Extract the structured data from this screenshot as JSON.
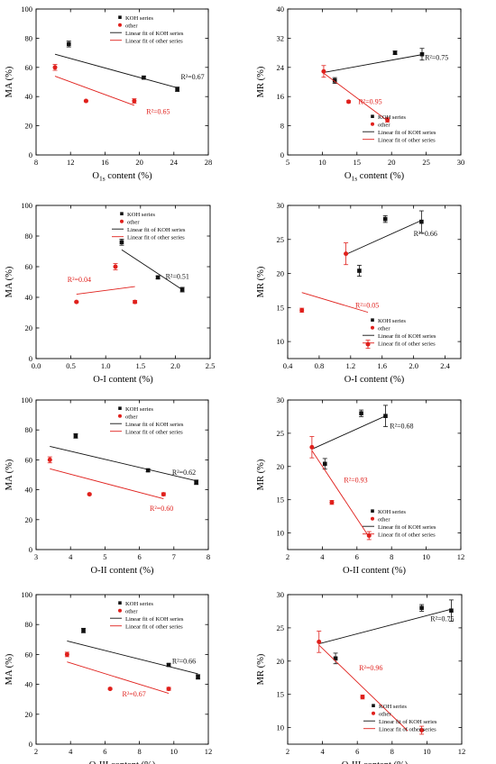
{
  "colors": {
    "koh": "#111111",
    "other": "#e0201c",
    "axis": "#000000"
  },
  "chart_data": [
    {
      "type": "scatter",
      "xlabel": "O",
      "xlabel_sub": "1s",
      "xlabel_tail": " content (%)",
      "ylabel": "MA (%)",
      "xlim": [
        8,
        28
      ],
      "ylim": [
        0,
        100
      ],
      "xticks": [
        8,
        12,
        16,
        20,
        24,
        28
      ],
      "yticks": [
        0,
        20,
        40,
        60,
        80,
        100
      ],
      "legend": {
        "placement": "top-right",
        "entries": [
          "KOH series",
          "other",
          "Linear fit of KOH series",
          "Linear fit of other series"
        ]
      },
      "series": [
        {
          "name": "KOH series",
          "marker": "square",
          "color": "#111111",
          "points": [
            {
              "x": 11.8,
              "y": 76,
              "err": 2
            },
            {
              "x": 20.5,
              "y": 53,
              "err": 1
            },
            {
              "x": 24.4,
              "y": 45,
              "err": 1.5
            }
          ],
          "fit": {
            "x": [
              10.2,
              24.4
            ],
            "y": [
              69,
              46
            ]
          },
          "r2": "R²=0.67",
          "r2_at": {
            "x": 24.8,
            "y": 52
          }
        },
        {
          "name": "other",
          "marker": "circle",
          "color": "#e0201c",
          "points": [
            {
              "x": 10.2,
              "y": 60,
              "err": 2
            },
            {
              "x": 13.8,
              "y": 37,
              "err": 0.5
            },
            {
              "x": 19.4,
              "y": 37,
              "err": 1.5
            }
          ],
          "fit": {
            "x": [
              10.2,
              19.4
            ],
            "y": [
              54,
              34
            ]
          },
          "r2": "R²=0.65",
          "r2_at": {
            "x": 20.8,
            "y": 28
          }
        }
      ]
    },
    {
      "type": "scatter",
      "xlabel": "O",
      "xlabel_sub": "1s",
      "xlabel_tail": " content (%)",
      "ylabel": "MR (%)",
      "xlim": [
        5,
        30
      ],
      "ylim": [
        0,
        40
      ],
      "xticks": [
        5,
        10,
        15,
        20,
        25,
        30
      ],
      "yticks": [
        0,
        8,
        16,
        24,
        32,
        40
      ],
      "legend": {
        "placement": "bottom-right",
        "entries": [
          "KOH series",
          "other",
          "Linear fit of KOH series",
          "Linear fit of other series"
        ]
      },
      "series": [
        {
          "name": "KOH series",
          "marker": "square",
          "color": "#111111",
          "points": [
            {
              "x": 11.8,
              "y": 20.4,
              "err": 0.8
            },
            {
              "x": 20.5,
              "y": 28,
              "err": 0.5
            },
            {
              "x": 24.4,
              "y": 27.6,
              "err": 1.6
            }
          ],
          "fit": {
            "x": [
              10.2,
              24.4
            ],
            "y": [
              22.6,
              27.5
            ]
          },
          "r2": "R²=0.75",
          "r2_at": {
            "x": 24.8,
            "y": 26
          }
        },
        {
          "name": "other",
          "marker": "circle",
          "color": "#e0201c",
          "points": [
            {
              "x": 10.2,
              "y": 22.9,
              "err": 1.6
            },
            {
              "x": 13.8,
              "y": 14.6,
              "err": 0.3
            },
            {
              "x": 19.4,
              "y": 9.6,
              "err": 0.6
            }
          ],
          "fit": {
            "x": [
              10.2,
              19.4
            ],
            "y": [
              22.4,
              9.4
            ]
          },
          "r2": "R²=0.95",
          "r2_at": {
            "x": 15.2,
            "y": 14
          }
        }
      ]
    },
    {
      "type": "scatter",
      "xlabel": "O-I content (%)",
      "ylabel": "MA (%)",
      "xlim": [
        0,
        2.5
      ],
      "ylim": [
        0,
        100
      ],
      "xticks": [
        0.0,
        0.5,
        1.0,
        1.5,
        2.0,
        2.5
      ],
      "yticks": [
        0,
        20,
        40,
        60,
        80,
        100
      ],
      "legend": {
        "placement": "top-right",
        "entries": [
          "KOH series",
          "other",
          "Linear fit of KOH series",
          "Linear fit of other series"
        ]
      },
      "series": [
        {
          "name": "KOH series",
          "marker": "square",
          "color": "#111111",
          "points": [
            {
              "x": 1.23,
              "y": 76,
              "err": 2
            },
            {
              "x": 1.75,
              "y": 53,
              "err": 1
            },
            {
              "x": 2.1,
              "y": 45,
              "err": 1.5
            }
          ],
          "fit": {
            "x": [
              1.23,
              2.1
            ],
            "y": [
              71,
              45
            ]
          },
          "r2": "R²=0.51",
          "r2_at": {
            "x": 1.86,
            "y": 52
          }
        },
        {
          "name": "other",
          "marker": "circle",
          "color": "#e0201c",
          "points": [
            {
              "x": 0.58,
              "y": 37,
              "err": 0.5
            },
            {
              "x": 1.14,
              "y": 60,
              "err": 2
            },
            {
              "x": 1.42,
              "y": 37,
              "err": 1
            }
          ],
          "fit": {
            "x": [
              0.58,
              1.42
            ],
            "y": [
              42,
              47
            ]
          },
          "r2": "R²=0.04",
          "r2_at": {
            "x": 0.45,
            "y": 50
          }
        }
      ]
    },
    {
      "type": "scatter",
      "xlabel": "O-I content (%)",
      "ylabel": "MR (%)",
      "xlim": [
        0.4,
        2.6
      ],
      "ylim": [
        7.5,
        30
      ],
      "xticks": [
        0.4,
        0.8,
        1.2,
        1.6,
        2.0,
        2.4
      ],
      "yticks": [
        10,
        15,
        20,
        25,
        30
      ],
      "legend": {
        "placement": "bottom-right",
        "entries": [
          "KOH series",
          "other",
          "Linear fit of KOH series",
          "Linear fit of other series"
        ]
      },
      "series": [
        {
          "name": "KOH series",
          "marker": "square",
          "color": "#111111",
          "points": [
            {
              "x": 1.31,
              "y": 20.4,
              "err": 0.8
            },
            {
              "x": 1.64,
              "y": 28,
              "err": 0.5
            },
            {
              "x": 2.1,
              "y": 27.6,
              "err": 1.6
            }
          ],
          "fit": {
            "x": [
              1.14,
              2.1
            ],
            "y": [
              22.8,
              27.8
            ]
          },
          "r2": "R²=0.66",
          "r2_at": {
            "x": 2.0,
            "y": 25.5
          }
        },
        {
          "name": "other",
          "marker": "circle",
          "color": "#e0201c",
          "points": [
            {
              "x": 0.58,
              "y": 14.6,
              "err": 0.3
            },
            {
              "x": 1.14,
              "y": 22.9,
              "err": 1.6
            },
            {
              "x": 1.42,
              "y": 9.6,
              "err": 0.6
            }
          ],
          "fit": {
            "x": [
              0.58,
              1.42
            ],
            "y": [
              17.2,
              14.3
            ]
          },
          "r2": "R²=0.05",
          "r2_at": {
            "x": 1.26,
            "y": 15
          }
        }
      ]
    },
    {
      "type": "scatter",
      "xlabel": "O-II content (%)",
      "ylabel": "MA (%)",
      "xlim": [
        3,
        8
      ],
      "ylim": [
        0,
        100
      ],
      "xticks": [
        3,
        4,
        5,
        6,
        7,
        8
      ],
      "yticks": [
        0,
        20,
        40,
        60,
        80,
        100
      ],
      "legend": {
        "placement": "top-right",
        "entries": [
          "KOH series",
          "other",
          "Linear fit of KOH series",
          "Linear fit of other series"
        ]
      },
      "series": [
        {
          "name": "KOH series",
          "marker": "square",
          "color": "#111111",
          "points": [
            {
              "x": 4.15,
              "y": 76,
              "err": 1.5
            },
            {
              "x": 6.25,
              "y": 53,
              "err": 1
            },
            {
              "x": 7.65,
              "y": 45,
              "err": 1.5
            }
          ],
          "fit": {
            "x": [
              3.4,
              7.65
            ],
            "y": [
              69,
              46
            ]
          },
          "r2": "R²=0.62",
          "r2_at": {
            "x": 6.95,
            "y": 50
          }
        },
        {
          "name": "other",
          "marker": "circle",
          "color": "#e0201c",
          "points": [
            {
              "x": 3.4,
              "y": 60,
              "err": 2
            },
            {
              "x": 4.55,
              "y": 37,
              "err": 0.5
            },
            {
              "x": 6.7,
              "y": 37,
              "err": 1
            }
          ],
          "fit": {
            "x": [
              3.4,
              6.7
            ],
            "y": [
              54,
              34
            ]
          },
          "r2": "R²=0.60",
          "r2_at": {
            "x": 6.3,
            "y": 26
          }
        }
      ]
    },
    {
      "type": "scatter",
      "xlabel": "O-II content (%)",
      "ylabel": "MR (%)",
      "xlim": [
        2,
        12
      ],
      "ylim": [
        7.5,
        30
      ],
      "xticks": [
        2,
        4,
        6,
        8,
        10,
        12
      ],
      "yticks": [
        10,
        15,
        20,
        25,
        30
      ],
      "legend": {
        "placement": "bottom-right",
        "entries": [
          "KOH series",
          "other",
          "Linear fit of KOH series",
          "Linear fit of other series"
        ]
      },
      "series": [
        {
          "name": "KOH series",
          "marker": "square",
          "color": "#111111",
          "points": [
            {
              "x": 4.15,
              "y": 20.4,
              "err": 0.8
            },
            {
              "x": 6.25,
              "y": 28,
              "err": 0.5
            },
            {
              "x": 7.65,
              "y": 27.6,
              "err": 1.6
            }
          ],
          "fit": {
            "x": [
              3.4,
              7.65
            ],
            "y": [
              22.6,
              27.6
            ]
          },
          "r2": "R²=0.68",
          "r2_at": {
            "x": 7.9,
            "y": 25.7
          }
        },
        {
          "name": "other",
          "marker": "circle",
          "color": "#e0201c",
          "points": [
            {
              "x": 3.4,
              "y": 22.9,
              "err": 1.6
            },
            {
              "x": 4.55,
              "y": 14.6,
              "err": 0.3
            },
            {
              "x": 6.7,
              "y": 9.6,
              "err": 0.6
            }
          ],
          "fit": {
            "x": [
              3.4,
              6.7
            ],
            "y": [
              22.4,
              9.4
            ]
          },
          "r2": "R²=0.93",
          "r2_at": {
            "x": 5.25,
            "y": 17.6
          }
        }
      ]
    },
    {
      "type": "scatter",
      "xlabel": "O-III content (%)",
      "ylabel": "MA (%)",
      "xlim": [
        2,
        12
      ],
      "ylim": [
        0,
        100
      ],
      "xticks": [
        2,
        4,
        6,
        8,
        10,
        12
      ],
      "yticks": [
        0,
        20,
        40,
        60,
        80,
        100
      ],
      "legend": {
        "placement": "top-right",
        "entries": [
          "KOH series",
          "other",
          "Linear fit of KOH series",
          "Linear fit of other series"
        ]
      },
      "series": [
        {
          "name": "KOH series",
          "marker": "square",
          "color": "#111111",
          "points": [
            {
              "x": 4.75,
              "y": 76,
              "err": 1.5
            },
            {
              "x": 9.7,
              "y": 53,
              "err": 1
            },
            {
              "x": 11.4,
              "y": 45,
              "err": 1.5
            }
          ],
          "fit": {
            "x": [
              3.8,
              11.4
            ],
            "y": [
              69,
              47
            ]
          },
          "r2": "R²=0.66",
          "r2_at": {
            "x": 9.9,
            "y": 54
          }
        },
        {
          "name": "other",
          "marker": "circle",
          "color": "#e0201c",
          "points": [
            {
              "x": 3.8,
              "y": 60,
              "err": 1.5
            },
            {
              "x": 6.3,
              "y": 37,
              "err": 0.5
            },
            {
              "x": 9.7,
              "y": 37,
              "err": 1
            }
          ],
          "fit": {
            "x": [
              3.8,
              9.7
            ],
            "y": [
              55,
              34
            ]
          },
          "r2": "R²=0.67",
          "r2_at": {
            "x": 7.0,
            "y": 32
          }
        }
      ]
    },
    {
      "type": "scatter",
      "xlabel": "O-III content (%)",
      "ylabel": "MR (%)",
      "xlim": [
        2,
        12
      ],
      "ylim": [
        7.5,
        30
      ],
      "xticks": [
        2,
        4,
        6,
        8,
        10,
        12
      ],
      "yticks": [
        10,
        15,
        20,
        25,
        30
      ],
      "legend": {
        "placement": "bottom-right",
        "entries": [
          "KOH series",
          "other",
          "Linear fit of KOH series",
          "Linear fit of other series"
        ]
      },
      "series": [
        {
          "name": "KOH series",
          "marker": "square",
          "color": "#111111",
          "points": [
            {
              "x": 4.75,
              "y": 20.4,
              "err": 0.8
            },
            {
              "x": 9.7,
              "y": 28,
              "err": 0.5
            },
            {
              "x": 11.4,
              "y": 27.6,
              "err": 1.6
            }
          ],
          "fit": {
            "x": [
              3.8,
              11.4
            ],
            "y": [
              22.6,
              27.8
            ]
          },
          "r2": "R²=0.75",
          "r2_at": {
            "x": 10.2,
            "y": 26
          }
        },
        {
          "name": "other",
          "marker": "circle",
          "color": "#e0201c",
          "points": [
            {
              "x": 3.8,
              "y": 22.9,
              "err": 1.6
            },
            {
              "x": 6.3,
              "y": 14.6,
              "err": 0.3
            },
            {
              "x": 9.7,
              "y": 9.6,
              "err": 0.6
            }
          ],
          "fit": {
            "x": [
              3.8,
              8.9
            ],
            "y": [
              22.4,
              9.5
            ]
          },
          "r2": "R²=0.96",
          "r2_at": {
            "x": 6.1,
            "y": 18.6
          }
        }
      ]
    }
  ]
}
